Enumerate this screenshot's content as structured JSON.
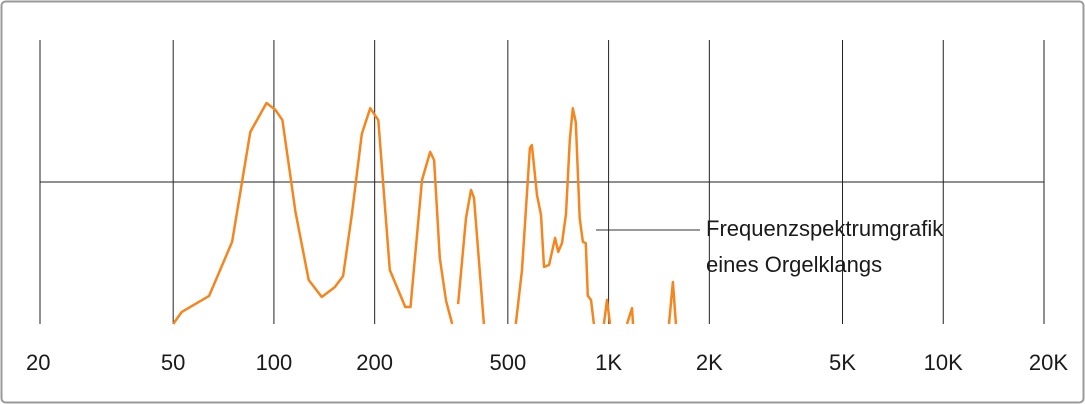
{
  "chart_data": {
    "type": "line",
    "xscale": "log",
    "xlim": [
      20,
      20000
    ],
    "ylim": [
      0,
      100
    ],
    "xticks": [
      20,
      50,
      100,
      200,
      500,
      {
        "value": 1000,
        "label": "1K"
      },
      {
        "value": 2000,
        "label": "2K"
      },
      {
        "value": 5000,
        "label": "5K"
      },
      {
        "value": 10000,
        "label": "10K"
      },
      {
        "value": 20000,
        "label": "20K"
      }
    ],
    "grid": true,
    "annotation": [
      "Frequenzspektrumgrafik",
      "eines Orgelklangs"
    ],
    "series": [
      {
        "color": "#f5861f",
        "x": [
          50,
          53,
          64,
          75,
          85,
          95,
          101,
          106,
          116,
          127,
          139,
          152,
          161,
          171,
          183,
          194,
          205,
          222,
          247,
          256,
          277,
          293,
          301,
          313,
          327,
          341,
          null,
          355,
          375,
          388,
          396,
          424,
          null,
          528,
          551,
          582,
          590,
          611,
          628,
          641,
          664,
          692,
          707,
          726,
          746,
          766,
          782,
          798,
          820,
          838,
          855,
          867,
          886,
          904,
          null,
          968,
          989,
          1010,
          null,
          1135,
          1175,
          1183,
          null,
          1515,
          1557,
          1589
        ],
        "values": [
          0,
          4.2,
          9.9,
          28.9,
          67.6,
          77.8,
          75.4,
          71.8,
          39.4,
          15.5,
          9.5,
          13,
          16.9,
          38.7,
          66.9,
          76,
          71.8,
          19,
          6,
          6,
          50.7,
          60.6,
          57.7,
          23.2,
          8.1,
          0,
          null,
          7,
          37.3,
          47.2,
          44.4,
          0,
          null,
          0,
          19,
          62,
          63,
          45.4,
          38.4,
          20.1,
          20.8,
          30.3,
          25.4,
          28.5,
          38.7,
          64.8,
          76,
          71,
          37.3,
          28.9,
          28.5,
          9.9,
          8.5,
          0,
          null,
          0,
          8.5,
          0,
          null,
          0,
          5.6,
          0,
          null,
          0,
          14.8,
          0
        ]
      }
    ]
  }
}
